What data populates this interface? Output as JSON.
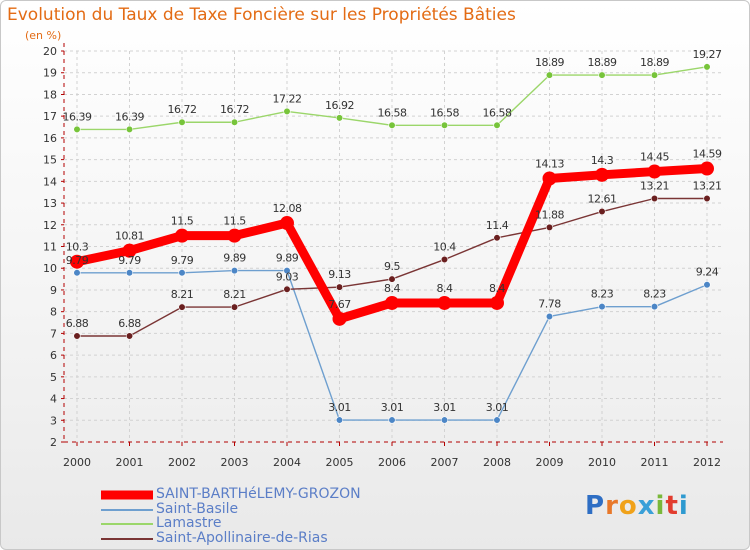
{
  "title": "Evolution du Taux de Taxe Foncière sur les Propriétés Bâties",
  "subtitle": "(en %)",
  "brand": {
    "letters": [
      "P",
      "r",
      "o",
      "x",
      "i",
      "t",
      "i"
    ],
    "colors": [
      "#2e6ec4",
      "#e8782a",
      "#f0a21a",
      "#3aa0d8",
      "#7ab83a",
      "#e23c2e",
      "#2e9ad0"
    ]
  },
  "chart_data": {
    "type": "line",
    "title": "Evolution du Taux de Taxe Foncière sur les Propriétés Bâties",
    "ylabel": "(en %)",
    "xlabel": "",
    "categories": [
      "2000",
      "2001",
      "2002",
      "2003",
      "2004",
      "2005",
      "2006",
      "2007",
      "2008",
      "2009",
      "2010",
      "2011",
      "2012"
    ],
    "ylim": [
      2,
      20
    ],
    "yticks": [
      2,
      3,
      4,
      5,
      6,
      7,
      8,
      9,
      10,
      11,
      12,
      13,
      14,
      15,
      16,
      17,
      18,
      19,
      20
    ],
    "grid": true,
    "legend_position": "bottom-left",
    "series": [
      {
        "name": "SAINT-BARTHéLEMY-GROZON",
        "color": "#ff0000",
        "marker": "#ff0000",
        "thick": true,
        "values": [
          10.3,
          10.81,
          11.5,
          11.5,
          12.08,
          7.67,
          8.4,
          8.4,
          8.4,
          14.13,
          14.3,
          14.45,
          14.59
        ],
        "labels": [
          "10.3",
          "10.81",
          "11.5",
          "11.5",
          "12.08",
          "7.67",
          "8.4",
          "8.4",
          "8.4",
          "14.13",
          "14.3",
          "14.45",
          "14.59"
        ]
      },
      {
        "name": "Saint-Basile",
        "color": "#6e9fcf",
        "marker": "#4c86c6",
        "thick": false,
        "values": [
          9.79,
          9.79,
          9.79,
          9.89,
          9.89,
          3.01,
          3.01,
          3.01,
          3.01,
          7.78,
          8.23,
          8.23,
          9.24
        ],
        "labels": [
          "9.79",
          "9.79",
          "9.79",
          "9.89",
          "9.89",
          "3.01",
          "3.01",
          "3.01",
          "3.01",
          "7.78",
          "8.23",
          "8.23",
          "9.24"
        ]
      },
      {
        "name": "Lamastre",
        "color": "#9bd66a",
        "marker": "#77c43a",
        "thick": false,
        "values": [
          16.39,
          16.39,
          16.72,
          16.72,
          17.22,
          16.92,
          16.58,
          16.58,
          16.58,
          18.89,
          18.89,
          18.89,
          19.27
        ],
        "labels": [
          "16.39",
          "16.39",
          "16.72",
          "16.72",
          "17.22",
          "16.92",
          "16.58",
          "16.58",
          "16.58",
          "18.89",
          "18.89",
          "18.89",
          "19.27"
        ]
      },
      {
        "name": "Saint-Apollinaire-de-Rias",
        "color": "#7a3535",
        "marker": "#6a1f1f",
        "thick": false,
        "values": [
          6.88,
          6.88,
          8.21,
          8.21,
          9.03,
          9.13,
          9.5,
          10.4,
          11.4,
          11.88,
          12.61,
          13.21,
          13.21
        ],
        "labels": [
          "6.88",
          "6.88",
          "8.21",
          "8.21",
          "9.03",
          "9.13",
          "9.5",
          "10.4",
          "11.4",
          "11.88",
          "12.61",
          "13.21",
          "13.21"
        ]
      }
    ]
  }
}
